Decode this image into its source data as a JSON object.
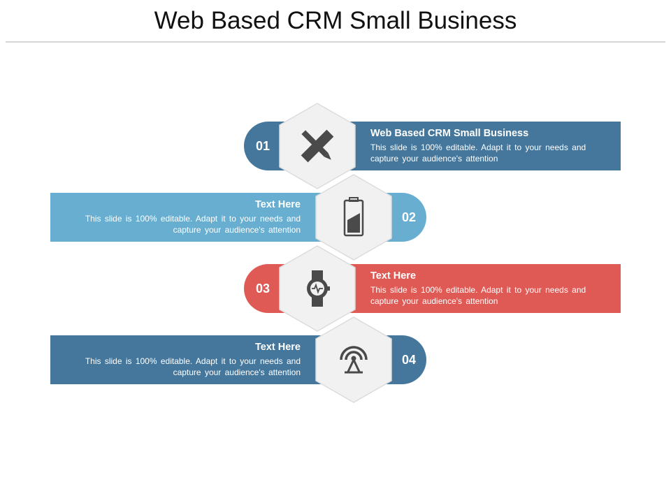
{
  "title": "Web Based CRM Small Business",
  "colors": {
    "dark_blue": "#45779c",
    "light_blue": "#68aed0",
    "red": "#e05a55",
    "hex_fill": "#f1f1f1",
    "icon": "#4a4a4a"
  },
  "items": [
    {
      "number": "01",
      "heading": "Web Based CRM Small Business",
      "body": "This slide is 100% editable. Adapt it to your needs and capture your audience's attention",
      "icon": "pencil-ruler-icon"
    },
    {
      "number": "02",
      "heading": "Text Here",
      "body": "This slide is 100% editable. Adapt it to your needs and capture your audience's attention",
      "icon": "battery-icon"
    },
    {
      "number": "03",
      "heading": "Text Here",
      "body": "This slide is 100% editable. Adapt it to your needs and capture your audience's attention",
      "icon": "smartwatch-icon"
    },
    {
      "number": "04",
      "heading": "Text Here",
      "body": "This slide is 100% editable. Adapt it to your needs and capture your audience's attention",
      "icon": "antenna-signal-icon"
    }
  ]
}
